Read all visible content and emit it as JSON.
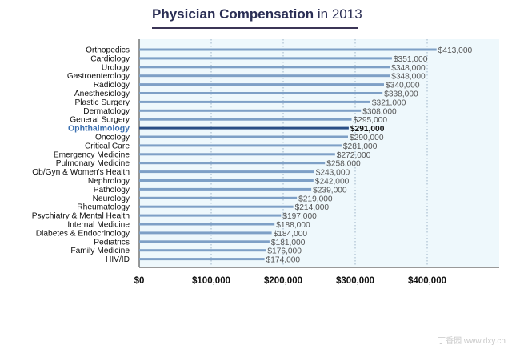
{
  "chart_data": {
    "type": "bar",
    "orientation": "horizontal",
    "title_bold": "Physician Compensation",
    "title_rest": " in 2013",
    "categories": [
      "Orthopedics",
      "Cardiology",
      "Urology",
      "Gastroenterology",
      "Radiology",
      "Anesthesiology",
      "Plastic Surgery",
      "Dermatology",
      "General Surgery",
      "Ophthalmology",
      "Oncology",
      "Critical Care",
      "Emergency Medicine",
      "Pulmonary Medicine",
      "Ob/Gyn & Women's Health",
      "Nephrology",
      "Pathology",
      "Neurology",
      "Rheumatology",
      "Psychiatry & Mental Health",
      "Internal Medicine",
      "Diabetes & Endocrinology",
      "Pediatrics",
      "Family Medicine",
      "HIV/ID"
    ],
    "values": [
      413000,
      351000,
      348000,
      348000,
      340000,
      338000,
      321000,
      308000,
      295000,
      291000,
      290000,
      281000,
      272000,
      258000,
      243000,
      242000,
      239000,
      219000,
      214000,
      197000,
      188000,
      184000,
      181000,
      176000,
      174000
    ],
    "value_labels": [
      "$413,000",
      "$351,000",
      "$348,000",
      "$348,000",
      "$340,000",
      "$338,000",
      "$321,000",
      "$308,000",
      "$295,000",
      "$291,000",
      "$290,000",
      "$281,000",
      "$272,000",
      "$258,000",
      "$243,000",
      "$242,000",
      "$239,000",
      "$219,000",
      "$214,000",
      "$197,000",
      "$188,000",
      "$184,000",
      "$181,000",
      "$176,000",
      "$174,000"
    ],
    "highlight_index": 9,
    "xlim": [
      0,
      500000
    ],
    "xticks": [
      0,
      100000,
      200000,
      300000,
      400000
    ],
    "xtick_labels": [
      "$0",
      "$100,000",
      "$200,000",
      "$300,000",
      "$400,000"
    ],
    "grid": "vertical-dotted",
    "colors": {
      "bar": "#7ea0c6",
      "highlight_bar": "#2a4f86",
      "highlight_label": "#3a6fb0",
      "plot_bg": "#eef8fc"
    }
  },
  "watermark": "丁香园 www.dxy.cn"
}
